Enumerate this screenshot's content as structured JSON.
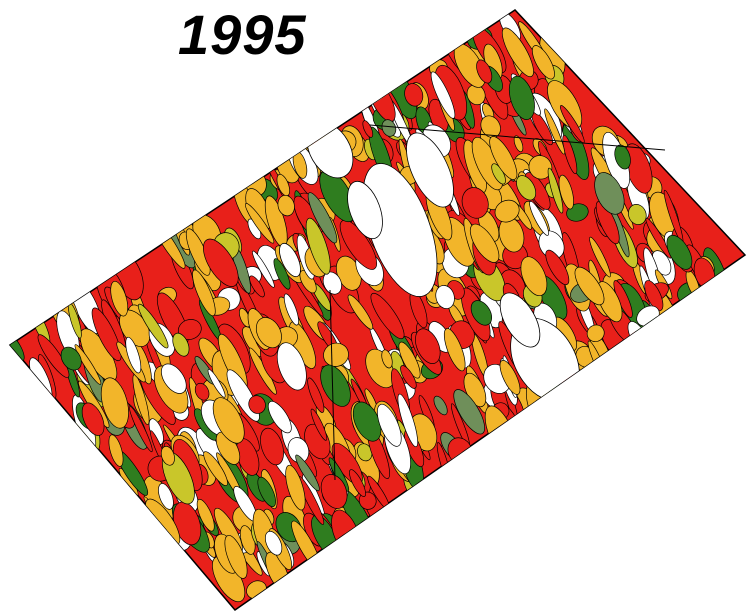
{
  "title": "1995"
}
